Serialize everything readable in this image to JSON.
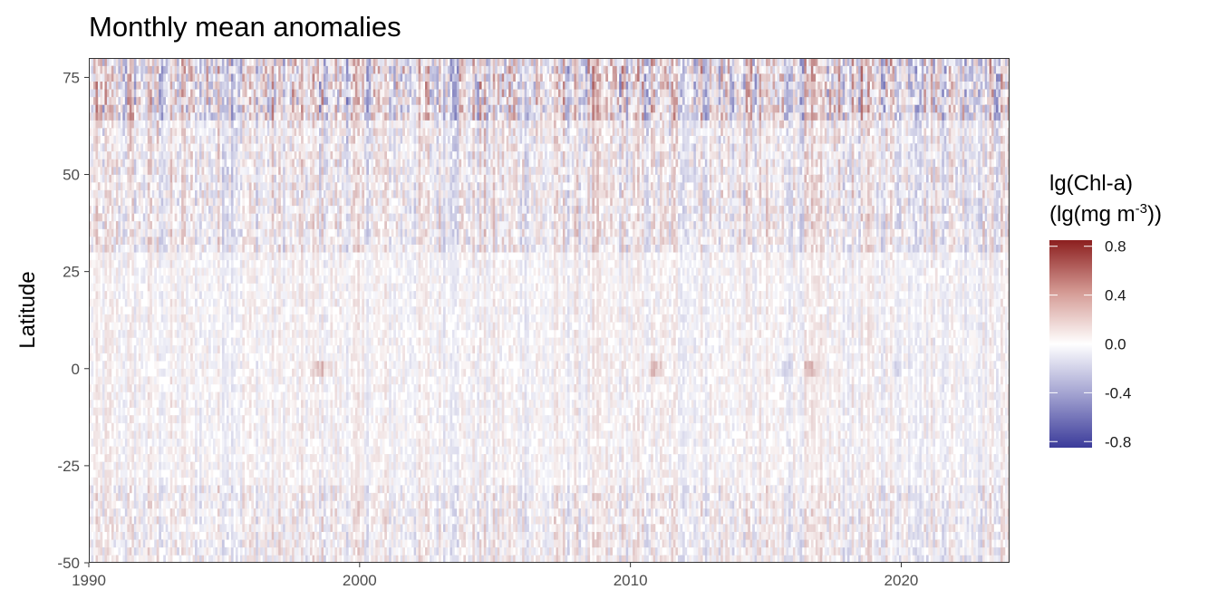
{
  "chart_data": {
    "type": "heatmap",
    "title": "Monthly mean anomalies",
    "xlabel": "",
    "ylabel": "Latitude",
    "xlim": [
      1990,
      2024
    ],
    "ylim": [
      -50,
      80
    ],
    "x_ticks": [
      1990,
      2000,
      2010,
      2020
    ],
    "y_ticks": [
      -50,
      -25,
      0,
      25,
      50,
      75
    ],
    "grid": false,
    "legend": {
      "title_line1": "lg(Chl-a)",
      "title_line2_prefix": "(lg(mg m",
      "title_line2_sup": "-3",
      "title_line2_suffix": "))",
      "position": "right",
      "ticks": [
        0.8,
        0.4,
        0.0,
        -0.4,
        -0.8
      ],
      "tick_labels": [
        "0.8",
        "0.4",
        "0.0",
        "-0.4",
        "-0.8"
      ],
      "range": [
        -0.85,
        0.85
      ],
      "colors": {
        "low": "#3b3b9a",
        "mid": "#ffffff",
        "high": "#8c1f1f"
      }
    },
    "colorscale": "diverging blue-white-red",
    "approx_anomaly_by_latitude_band": [
      {
        "lat_range": [
          65,
          80
        ],
        "typical_range": [
          -0.4,
          0.5
        ]
      },
      {
        "lat_range": [
          30,
          65
        ],
        "typical_range": [
          -0.25,
          0.25
        ]
      },
      {
        "lat_range": [
          -30,
          30
        ],
        "typical_range": [
          -0.12,
          0.12
        ]
      },
      {
        "lat_range": [
          -50,
          -30
        ],
        "typical_range": [
          -0.2,
          0.2
        ]
      }
    ],
    "notable_positive_anomalies": [
      {
        "year": 1998.6,
        "lat": 0,
        "value": 0.25
      },
      {
        "year": 2010.9,
        "lat": 0,
        "value": 0.25
      },
      {
        "year": 2016.6,
        "lat": 0,
        "value": 0.22
      }
    ],
    "notable_negative_anomalies": [
      {
        "year": 2015.7,
        "lat": 0,
        "value": -0.15
      },
      {
        "year": 2019.9,
        "lat": 0,
        "value": -0.12
      }
    ]
  }
}
